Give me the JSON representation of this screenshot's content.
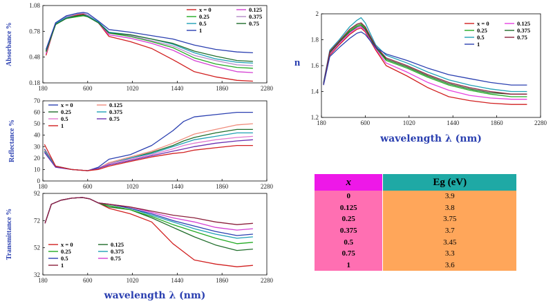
{
  "chart_data": [
    {
      "id": "absorbance",
      "type": "line",
      "ylabel": "Absorbance %",
      "xlabel": "",
      "xlim": [
        180,
        2280
      ],
      "ylim": [
        0.18,
        1.08
      ],
      "xticks": [
        "180",
        "600",
        "1020",
        "1440",
        "1860",
        "2280"
      ],
      "yticks": [
        "0.18",
        "0.48",
        "0.78",
        "1.08"
      ],
      "legend": "top-right",
      "x": [
        210,
        300,
        400,
        500,
        560,
        600,
        700,
        800,
        1000,
        1200,
        1400,
        1600,
        1800,
        2000,
        2150
      ],
      "series": [
        {
          "name": "x = 0",
          "color": "#d11f1f",
          "values": [
            0.5,
            0.88,
            0.94,
            0.97,
            0.98,
            0.97,
            0.88,
            0.72,
            0.66,
            0.58,
            0.45,
            0.31,
            0.25,
            0.21,
            0.2
          ]
        },
        {
          "name": "0.125",
          "color": "#d43fd3",
          "values": [
            0.52,
            0.87,
            0.93,
            0.96,
            0.97,
            0.96,
            0.88,
            0.74,
            0.7,
            0.64,
            0.56,
            0.44,
            0.37,
            0.31,
            0.3
          ]
        },
        {
          "name": "0.25",
          "color": "#22aa22",
          "values": [
            0.54,
            0.86,
            0.93,
            0.95,
            0.96,
            0.95,
            0.88,
            0.76,
            0.72,
            0.66,
            0.59,
            0.47,
            0.4,
            0.36,
            0.35
          ]
        },
        {
          "name": "0.375",
          "color": "#b48ac8",
          "values": [
            0.55,
            0.88,
            0.95,
            0.98,
            0.99,
            0.97,
            0.89,
            0.77,
            0.73,
            0.67,
            0.61,
            0.5,
            0.44,
            0.39,
            0.38
          ]
        },
        {
          "name": "0.5",
          "color": "#1fa0b5",
          "values": [
            0.56,
            0.87,
            0.94,
            0.96,
            0.97,
            0.96,
            0.89,
            0.77,
            0.74,
            0.69,
            0.63,
            0.53,
            0.46,
            0.42,
            0.41
          ]
        },
        {
          "name": "0.75",
          "color": "#1f6d2a",
          "values": [
            0.55,
            0.86,
            0.93,
            0.96,
            0.97,
            0.95,
            0.88,
            0.76,
            0.74,
            0.69,
            0.64,
            0.55,
            0.49,
            0.44,
            0.43
          ]
        },
        {
          "name": "1",
          "color": "#2a3fb0",
          "values": [
            0.57,
            0.88,
            0.96,
            0.99,
            1.0,
            0.99,
            0.9,
            0.8,
            0.77,
            0.73,
            0.69,
            0.62,
            0.57,
            0.54,
            0.53
          ]
        }
      ]
    },
    {
      "id": "reflectance",
      "type": "line",
      "ylabel": "Reflectance %",
      "xlabel": "",
      "xlim": [
        180,
        2280
      ],
      "ylim": [
        0,
        70
      ],
      "xticks": [
        "180",
        "600",
        "1020",
        "1440",
        "1860",
        "2280"
      ],
      "yticks": [
        "0",
        "10",
        "20",
        "30",
        "40",
        "50",
        "60",
        "70"
      ],
      "legend": "top-left",
      "x": [
        195,
        300,
        450,
        600,
        700,
        800,
        1000,
        1200,
        1400,
        1500,
        1600,
        1800,
        2000,
        2150
      ],
      "series": [
        {
          "name": "x = 0",
          "color": "#2a3fb0",
          "values": [
            28,
            13,
            10,
            9,
            12,
            19,
            23,
            31,
            44,
            52,
            56,
            58,
            60,
            60
          ]
        },
        {
          "name": "0.125",
          "color": "#f08c7c",
          "values": [
            27,
            13,
            10,
            9,
            11,
            16,
            21,
            26,
            33,
            37,
            41,
            45,
            49,
            50
          ]
        },
        {
          "name": "0.25",
          "color": "#1f6d2a",
          "values": [
            26,
            13,
            10,
            9,
            11,
            15,
            20,
            25,
            31,
            35,
            38,
            42,
            45,
            45
          ]
        },
        {
          "name": "0.375",
          "color": "#1fa0b5",
          "values": [
            26,
            13,
            10,
            9,
            11,
            15,
            20,
            24,
            30,
            33,
            36,
            39,
            42,
            42
          ]
        },
        {
          "name": "0.5",
          "color": "#e07ad0",
          "values": [
            25,
            12,
            10,
            9,
            11,
            15,
            19,
            23,
            28,
            31,
            33,
            36,
            38,
            39
          ]
        },
        {
          "name": "0.75",
          "color": "#6a2fb0",
          "values": [
            25,
            12,
            10,
            9,
            11,
            14,
            18,
            22,
            26,
            28,
            30,
            33,
            35,
            36
          ]
        },
        {
          "name": "1",
          "color": "#d11f1f",
          "values": [
            32,
            13,
            10,
            9,
            10,
            13,
            17,
            21,
            24,
            25,
            27,
            29,
            31,
            31
          ]
        }
      ]
    },
    {
      "id": "transmittance",
      "type": "line",
      "ylabel": "Transmittance %",
      "xlabel": "wavelength λ (nm)",
      "xlim": [
        180,
        2280
      ],
      "ylim": [
        32,
        92
      ],
      "xticks": [
        "180",
        "600",
        "1020",
        "1440",
        "1860",
        "2280"
      ],
      "yticks": [
        "32",
        "52",
        "72",
        "92"
      ],
      "legend": "bottom-left",
      "x": [
        200,
        260,
        350,
        450,
        550,
        620,
        700,
        800,
        1000,
        1200,
        1400,
        1600,
        1800,
        2000,
        2150
      ],
      "series": [
        {
          "name": "x = 0",
          "color": "#d11f1f",
          "values": [
            70,
            84,
            87,
            88.5,
            89,
            88,
            85,
            81,
            77,
            71,
            55,
            43,
            40,
            38,
            39
          ]
        },
        {
          "name": "0.125",
          "color": "#1f6d2a",
          "values": [
            70,
            84,
            87,
            88.5,
            89,
            88,
            85,
            82,
            80,
            74,
            67,
            60,
            54,
            50,
            51
          ]
        },
        {
          "name": "0.25",
          "color": "#22aa22",
          "values": [
            70,
            84,
            87,
            88.5,
            89,
            88,
            85,
            83,
            80,
            75,
            69,
            64,
            59,
            55,
            56
          ]
        },
        {
          "name": "0.375",
          "color": "#1fa0b5",
          "values": [
            70,
            84,
            87,
            88.5,
            89,
            88,
            85,
            84,
            81,
            76,
            71,
            66,
            62,
            59,
            60
          ]
        },
        {
          "name": "0.5",
          "color": "#2a3fb0",
          "values": [
            70,
            84,
            87,
            88.5,
            89,
            88,
            85,
            84,
            81,
            77,
            72,
            68,
            64,
            61,
            62
          ]
        },
        {
          "name": "0.75",
          "color": "#d43fd3",
          "values": [
            70,
            84,
            87,
            88.5,
            89,
            88,
            85,
            84,
            82,
            78,
            74,
            71,
            67,
            65,
            66
          ]
        },
        {
          "name": "1",
          "color": "#8a1f3a",
          "values": [
            70,
            84,
            87,
            88.5,
            89,
            88,
            85,
            84,
            82,
            79,
            76,
            74,
            71,
            69,
            70
          ]
        }
      ]
    },
    {
      "id": "refractive-index",
      "type": "line",
      "ylabel": "n",
      "xlabel": "wavelength λ (nm)",
      "xlim": [
        180,
        2280
      ],
      "ylim": [
        1.2,
        2.0
      ],
      "xticks": [
        "180",
        "600",
        "1020",
        "1440",
        "1860",
        "2280"
      ],
      "yticks": [
        "1.2",
        "1.4",
        "1.6",
        "1.8",
        "2"
      ],
      "legend": "top-right",
      "x": [
        200,
        260,
        350,
        450,
        520,
        560,
        600,
        700,
        800,
        1000,
        1200,
        1400,
        1600,
        1800,
        2000,
        2150
      ],
      "series": [
        {
          "name": "x = 0",
          "color": "#d11f1f",
          "values": [
            1.45,
            1.68,
            1.76,
            1.84,
            1.88,
            1.89,
            1.86,
            1.72,
            1.6,
            1.52,
            1.43,
            1.36,
            1.33,
            1.31,
            1.3,
            1.3
          ]
        },
        {
          "name": "0.125",
          "color": "#e640e0",
          "values": [
            1.46,
            1.69,
            1.77,
            1.85,
            1.89,
            1.9,
            1.87,
            1.73,
            1.62,
            1.55,
            1.47,
            1.41,
            1.37,
            1.35,
            1.34,
            1.34
          ]
        },
        {
          "name": "0.25",
          "color": "#22aa22",
          "values": [
            1.46,
            1.7,
            1.78,
            1.87,
            1.91,
            1.92,
            1.89,
            1.74,
            1.64,
            1.58,
            1.51,
            1.45,
            1.41,
            1.38,
            1.36,
            1.36
          ]
        },
        {
          "name": "0.375",
          "color": "#1f6d2a",
          "values": [
            1.46,
            1.7,
            1.78,
            1.86,
            1.9,
            1.91,
            1.88,
            1.74,
            1.65,
            1.59,
            1.52,
            1.46,
            1.42,
            1.39,
            1.38,
            1.38
          ]
        },
        {
          "name": "0.5",
          "color": "#1fa0b5",
          "values": [
            1.47,
            1.72,
            1.8,
            1.9,
            1.95,
            1.97,
            1.93,
            1.76,
            1.68,
            1.62,
            1.55,
            1.49,
            1.45,
            1.42,
            1.4,
            1.4
          ]
        },
        {
          "name": "0.75",
          "color": "#8a1f3a",
          "values": [
            1.46,
            1.71,
            1.79,
            1.88,
            1.92,
            1.93,
            1.9,
            1.75,
            1.66,
            1.6,
            1.53,
            1.47,
            1.43,
            1.4,
            1.38,
            1.38
          ]
        },
        {
          "name": "1",
          "color": "#2a3fb0",
          "values": [
            1.45,
            1.67,
            1.74,
            1.81,
            1.85,
            1.86,
            1.84,
            1.74,
            1.69,
            1.64,
            1.58,
            1.53,
            1.5,
            1.47,
            1.45,
            1.45
          ]
        }
      ]
    },
    {
      "id": "band-gap-table",
      "type": "table",
      "header": {
        "x": "x",
        "eg": "Eg  (eV)"
      },
      "rows": [
        {
          "x": "0",
          "eg": "3.9"
        },
        {
          "x": "0.125",
          "eg": "3.8"
        },
        {
          "x": "0.25",
          "eg": "3.75"
        },
        {
          "x": "0.375",
          "eg": "3.7"
        },
        {
          "x": "0.5",
          "eg": "3.45"
        },
        {
          "x": "0.75",
          "eg": "3.3"
        },
        {
          "x": "1",
          "eg": "3.6"
        }
      ]
    }
  ]
}
